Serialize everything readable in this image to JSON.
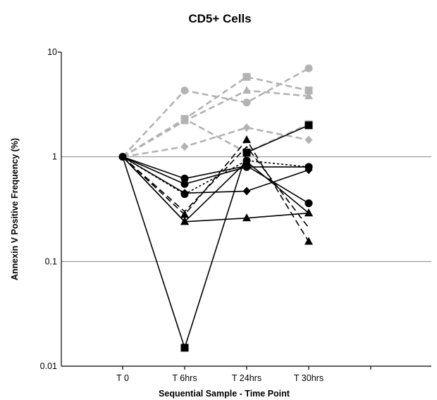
{
  "chart_data": {
    "type": "line",
    "title": "CD5+ Cells",
    "xlabel": "Sequential Sample - Time Point",
    "ylabel": "Annexin V Positive Frequency (%)",
    "y_scale": "log",
    "ylim": [
      0.01,
      10
    ],
    "y_ticks": [
      "0.01",
      "0.1",
      "1",
      "10"
    ],
    "grid": "horizontal major gridlines",
    "categories": [
      "T 0",
      "T 6hrs",
      "T 24hrs",
      "T 30hrs"
    ],
    "colors": {
      "gray": "#b3b3b3",
      "black": "#000000"
    },
    "series": [
      {
        "color": "gray",
        "dash": "dashed",
        "marker": "circle",
        "values": [
          1,
          4.3,
          3.3,
          7.0
        ]
      },
      {
        "color": "gray",
        "dash": "dashed",
        "marker": "square",
        "values": [
          1,
          2.3,
          5.8,
          4.3
        ]
      },
      {
        "color": "gray",
        "dash": "dashed",
        "marker": "triangle",
        "values": [
          1,
          2.2,
          4.3,
          3.8
        ]
      },
      {
        "color": "gray",
        "dash": "dashed",
        "marker": "diamond",
        "values": [
          1,
          1.25,
          1.9,
          1.45
        ]
      },
      {
        "color": "gray",
        "dash": "dashed",
        "marker": "square",
        "values": [
          1,
          2.3,
          1.1,
          2.05
        ]
      },
      {
        "color": "black",
        "dash": "solid",
        "marker": "square",
        "values": [
          1,
          0.015,
          1.1,
          2.0
        ]
      },
      {
        "color": "black",
        "dash": "solid",
        "marker": "circle",
        "values": [
          1,
          0.62,
          0.82,
          0.36
        ]
      },
      {
        "color": "black",
        "dash": "solid",
        "marker": "diamond",
        "values": [
          1,
          0.45,
          0.47,
          0.75
        ]
      },
      {
        "color": "black",
        "dash": "solid",
        "marker": "triangle",
        "values": [
          1,
          0.24,
          0.26,
          0.29
        ]
      },
      {
        "color": "black",
        "dash": "dotted",
        "marker": "circle",
        "values": [
          1,
          0.44,
          0.92,
          0.8
        ]
      },
      {
        "color": "black",
        "dash": "dashed",
        "marker": "triangle",
        "values": [
          1,
          0.28,
          1.45,
          0.155
        ]
      },
      {
        "color": "black",
        "dash": "dashed",
        "marker": "none",
        "values": [
          1,
          0.3,
          1.25,
          0.21
        ]
      },
      {
        "color": "black",
        "dash": "solid",
        "marker": "circle",
        "values": [
          1,
          0.55,
          0.8,
          0.8
        ]
      },
      {
        "color": "black",
        "dash": "solid",
        "marker": "triangle",
        "values": [
          1,
          0.24,
          0.9,
          0.29
        ]
      }
    ]
  }
}
